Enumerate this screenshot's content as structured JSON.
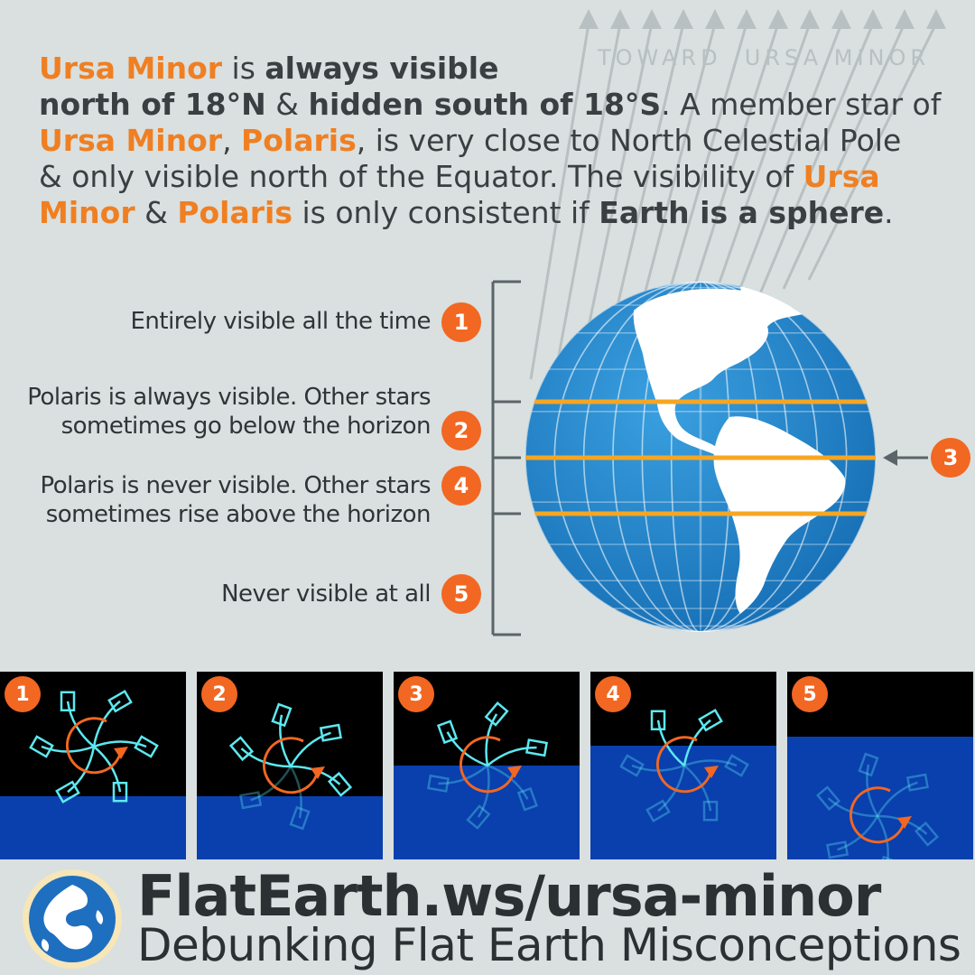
{
  "toward_label": "TOWARD  URSA MINOR",
  "intro": {
    "l1_a": "Ursa Minor",
    "l1_b": " is ",
    "l1_c": "always visible",
    "l2_a": "north of 18°N",
    "l2_b": " & ",
    "l2_c": "hidden south of 18°S",
    "l2_d": ". A member star of",
    "l3_a": "Ursa Minor",
    "l3_b": ", ",
    "l3_c": "Polaris",
    "l3_d": ", is very close to North Celestial Pole",
    "l4": "& only visible north of the Equator. The visibility of ",
    "l4_hl": "Ursa",
    "l5_a": "Minor",
    "l5_b": " & ",
    "l5_c": "Polaris",
    "l5_d": " is only consistent if ",
    "l5_e": "Earth is a sphere",
    "l5_f": "."
  },
  "zones": [
    {
      "badge": "1",
      "line1": "Entirely visible all the time",
      "line2": ""
    },
    {
      "badge": "2",
      "line1": "Polaris is always visible. Other stars",
      "line2": "sometimes go below the horizon"
    },
    {
      "badge": "4",
      "line1": "Polaris is never visible. Other stars",
      "line2": "sometimes rise above the horizon"
    },
    {
      "badge": "5",
      "line1": "Never visible at all",
      "line2": ""
    }
  ],
  "equator_badge": "3",
  "panels": [
    "1",
    "2",
    "3",
    "4",
    "5"
  ],
  "footer": {
    "title": "FlatEarth.ws/ursa-minor",
    "subtitle": "Debunking Flat Earth Misconceptions"
  },
  "colors": {
    "background": "#d9e0df",
    "accent": "#f26722",
    "highlight_text": "#f07f22",
    "ocean": "#1f8ad0",
    "latitude_band": "#f5a623",
    "ground": "#0a3fae",
    "constellation": "#5de8f0"
  }
}
